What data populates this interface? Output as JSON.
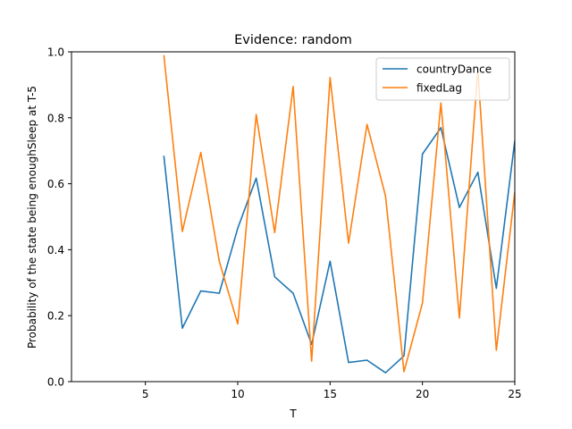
{
  "chart_data": {
    "type": "line",
    "title": "Evidence: random",
    "xlabel": "T",
    "ylabel": "Probability of the state being enoughSleep at T-5",
    "xlim": [
      1,
      25
    ],
    "ylim": [
      0.0,
      1.0
    ],
    "xticks": [
      5,
      10,
      15,
      20,
      25
    ],
    "xtick_labels": [
      "5",
      "10",
      "15",
      "20",
      "25"
    ],
    "yticks": [
      0.0,
      0.2,
      0.4,
      0.6,
      0.8,
      1.0
    ],
    "ytick_labels": [
      "0.0",
      "0.2",
      "0.4",
      "0.6",
      "0.8",
      "1.0"
    ],
    "grid": false,
    "legend_position": "top-right",
    "x": [
      6,
      7,
      8,
      9,
      10,
      11,
      12,
      13,
      14,
      15,
      16,
      17,
      18,
      19,
      20,
      21,
      22,
      23,
      24,
      25
    ],
    "series": [
      {
        "name": "countryDance",
        "color": "#1f77b4",
        "values": [
          0.685,
          0.162,
          0.275,
          0.268,
          0.465,
          0.617,
          0.318,
          0.268,
          0.113,
          0.365,
          0.058,
          0.065,
          0.027,
          0.078,
          0.69,
          0.77,
          0.528,
          0.635,
          0.283,
          0.73
        ]
      },
      {
        "name": "fixedLag",
        "color": "#ff7f0e",
        "values": [
          0.99,
          0.455,
          0.695,
          0.365,
          0.175,
          0.81,
          0.452,
          0.895,
          0.062,
          0.922,
          0.42,
          0.78,
          0.563,
          0.03,
          0.238,
          0.845,
          0.193,
          0.945,
          0.095,
          0.575
        ]
      }
    ]
  }
}
